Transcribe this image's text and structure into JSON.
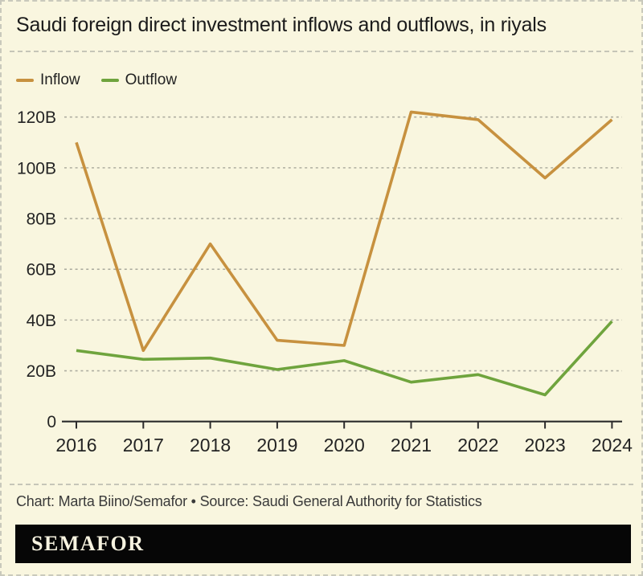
{
  "page": {
    "title": "Saudi foreign direct investment inflows and outflows, in riyals",
    "background_color": "#f9f6df"
  },
  "chart_data": {
    "type": "line",
    "x": [
      2016,
      2017,
      2018,
      2019,
      2020,
      2021,
      2022,
      2023,
      2024
    ],
    "series": [
      {
        "name": "Inflow",
        "color": "#c7913f",
        "values": [
          110,
          28,
          70,
          32,
          30,
          122,
          119,
          96,
          119
        ]
      },
      {
        "name": "Outflow",
        "color": "#6fa43d",
        "values": [
          28,
          24.5,
          25,
          20.5,
          24,
          15.5,
          18.5,
          10.5,
          39.5
        ]
      }
    ],
    "unit": "B riyals",
    "ylim": [
      0,
      125
    ],
    "yticks": [
      0,
      20,
      40,
      60,
      80,
      100,
      120
    ],
    "ytick_labels": [
      "0",
      "20B",
      "40B",
      "60B",
      "80B",
      "100B",
      "120B"
    ],
    "xtick_labels": [
      "2016",
      "2017",
      "2018",
      "2019",
      "2020",
      "2021",
      "2022",
      "2023",
      "2024"
    ],
    "grid": true,
    "grid_color": "#aeaea1",
    "axis_color": "#2b2b2b",
    "legend_position": "top-left"
  },
  "footer": {
    "credit": "Chart: Marta Biino/Semafor • Source: Saudi General Authority for Statistics"
  },
  "brand": {
    "logo_text": "SEMAFOR"
  }
}
